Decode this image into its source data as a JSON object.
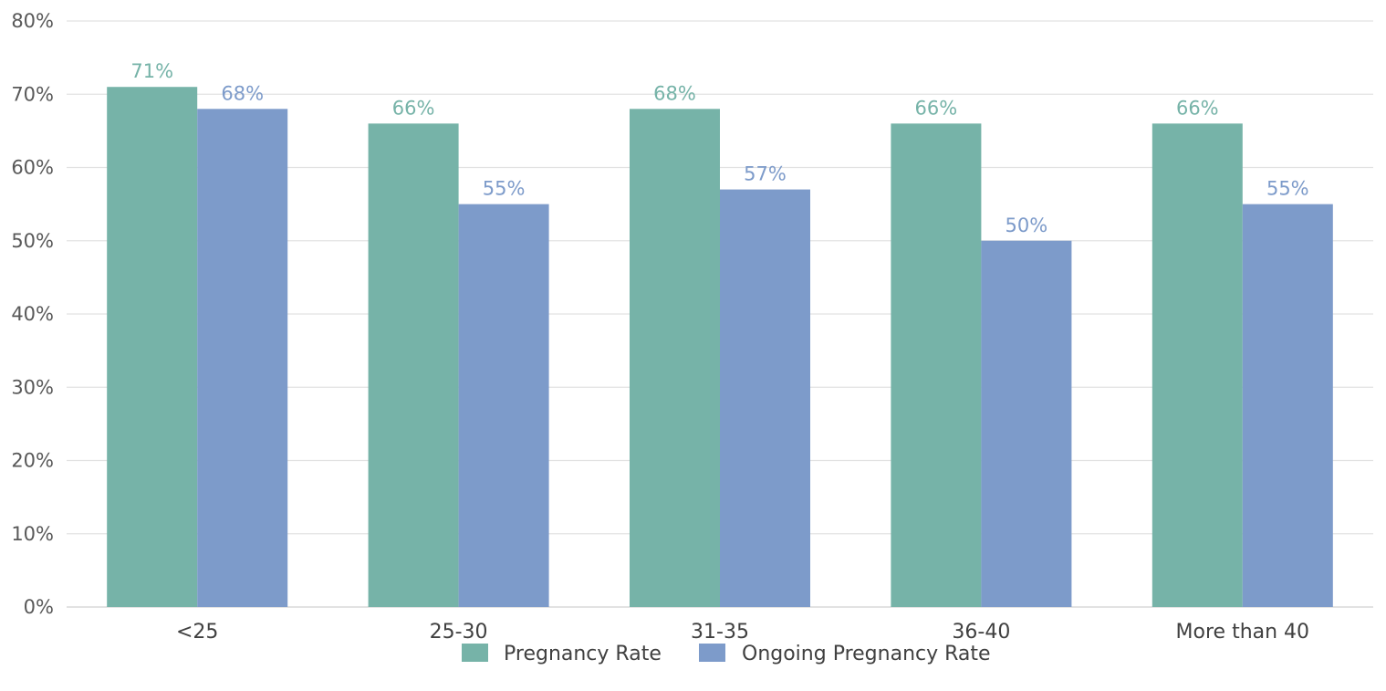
{
  "chart_data": {
    "type": "bar",
    "categories": [
      "<25",
      "25-30",
      "31-35",
      "36-40",
      "More than 40"
    ],
    "series": [
      {
        "name": "Pregnancy Rate",
        "values": [
          71,
          66,
          68,
          66,
          66
        ],
        "labels": [
          "71%",
          "66%",
          "68%",
          "66%",
          "66%"
        ],
        "color": "#76b3a8"
      },
      {
        "name": "Ongoing Pregnancy Rate",
        "values": [
          68,
          55,
          57,
          50,
          55
        ],
        "labels": [
          "68%",
          "55%",
          "57%",
          "50%",
          "55%"
        ],
        "color": "#7d9bca"
      }
    ],
    "ylim": [
      0,
      80
    ],
    "yticks": [
      0,
      10,
      20,
      30,
      40,
      50,
      60,
      70,
      80
    ],
    "ytick_labels": [
      "0%",
      "10%",
      "20%",
      "30%",
      "40%",
      "50%",
      "60%",
      "70%",
      "80%"
    ],
    "grid": true,
    "legend": "bottom"
  }
}
